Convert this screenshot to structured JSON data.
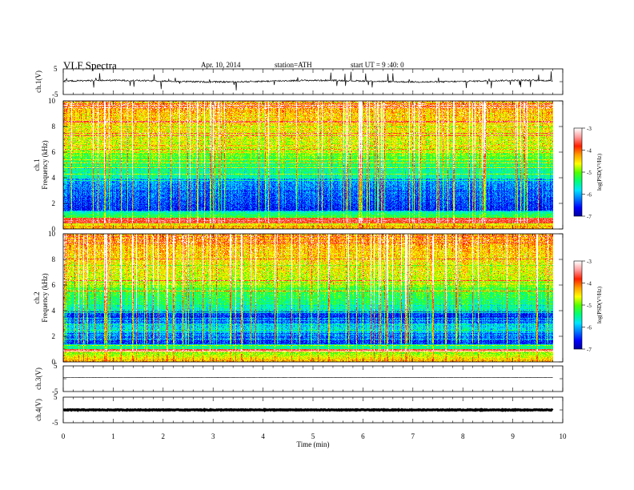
{
  "header": {
    "title": "VLF Spectra",
    "date": "Apr. 10, 2014",
    "station": "station=ATH",
    "start": "start UT = 9 :40: 0"
  },
  "chart_data": [
    {
      "type": "line",
      "panel": "ch1-waveform",
      "ylabel": "ch.1(V)",
      "yticks": [
        "5",
        "-5"
      ],
      "ylim": [
        -5,
        5
      ],
      "xlim": [
        0,
        10
      ],
      "series": [
        {
          "baseline": 0.2,
          "noise": 0.6,
          "spikes": true
        }
      ]
    },
    {
      "type": "heatmap",
      "panel": "ch1-spectrogram",
      "ylabel": "Frequency (kHz)",
      "ylabel2": "ch.1",
      "yticks": [
        "0",
        "2",
        "4",
        "6",
        "8",
        "10"
      ],
      "ylim": [
        0,
        10
      ],
      "xlim": [
        0,
        9.8
      ],
      "colorbar": {
        "label": "log(PSD(V²/Hz)",
        "ticks": [
          "-3",
          "-4",
          "-5",
          "-6",
          "-7"
        ],
        "range": [
          -7,
          -3
        ]
      }
    },
    {
      "type": "heatmap",
      "panel": "ch2-spectrogram",
      "ylabel": "Frequency (kHz)",
      "ylabel2": "ch.2",
      "yticks": [
        "0",
        "2",
        "4",
        "6",
        "8",
        "10"
      ],
      "ylim": [
        0,
        10
      ],
      "xlim": [
        0,
        9.8
      ],
      "colorbar": {
        "label": "log(PSD(V²/Hz)",
        "ticks": [
          "-3",
          "-4",
          "-5",
          "-6",
          "-7"
        ],
        "range": [
          -7,
          -3
        ]
      }
    },
    {
      "type": "line",
      "panel": "ch3-waveform",
      "ylabel": "ch.3(V)",
      "yticks": [
        "5",
        "-5"
      ],
      "ylim": [
        -5,
        5
      ],
      "xlim": [
        0,
        10
      ],
      "series": [
        {
          "baseline": 0.5,
          "noise": 0.05
        }
      ]
    },
    {
      "type": "line",
      "panel": "ch4-waveform",
      "ylabel": "ch.4(V)",
      "yticks": [
        "5",
        "-5"
      ],
      "ylim": [
        -5,
        5
      ],
      "xlim": [
        0,
        10
      ],
      "series": [
        {
          "baseline": 0,
          "noise": 0.25
        }
      ]
    }
  ],
  "xaxis": {
    "label": "Time (min)",
    "ticks": [
      "0",
      "1",
      "2",
      "3",
      "4",
      "5",
      "6",
      "7",
      "8",
      "9",
      "10"
    ]
  },
  "colors": {
    "scale": [
      "#00009a",
      "#0000ff",
      "#0078ff",
      "#00e6ff",
      "#00ff78",
      "#50ff00",
      "#ffff00",
      "#ffa000",
      "#ff2000",
      "#ff9a9a",
      "#ffffff"
    ]
  }
}
